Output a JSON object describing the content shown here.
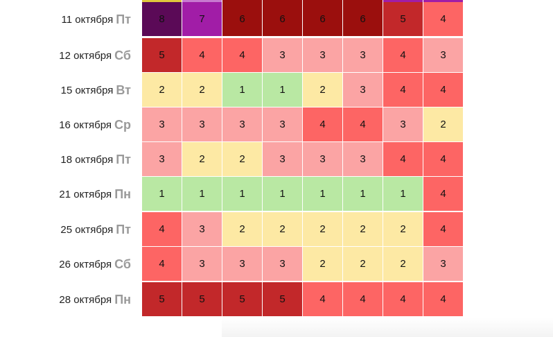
{
  "rows": [
    {
      "date": "11 октября",
      "dow": "Пт",
      "values": [
        8,
        7,
        6,
        6,
        6,
        6,
        5,
        4
      ]
    },
    {
      "date": "12 октября",
      "dow": "Сб",
      "values": [
        5,
        4,
        4,
        3,
        3,
        3,
        4,
        3
      ]
    },
    {
      "date": "15 октября",
      "dow": "Вт",
      "values": [
        2,
        2,
        1,
        1,
        2,
        3,
        4,
        4
      ]
    },
    {
      "date": "16 октября",
      "dow": "Ср",
      "values": [
        3,
        3,
        3,
        3,
        4,
        4,
        3,
        2
      ]
    },
    {
      "date": "18 октября",
      "dow": "Пт",
      "values": [
        3,
        2,
        2,
        3,
        3,
        3,
        4,
        4
      ]
    },
    {
      "date": "21 октября",
      "dow": "Пн",
      "values": [
        1,
        1,
        1,
        1,
        1,
        1,
        1,
        4
      ]
    },
    {
      "date": "25 октября",
      "dow": "Пт",
      "values": [
        4,
        3,
        2,
        2,
        2,
        2,
        2,
        4
      ]
    },
    {
      "date": "26 октября",
      "dow": "Сб",
      "values": [
        4,
        3,
        3,
        3,
        2,
        2,
        2,
        3
      ]
    },
    {
      "date": "28 октября",
      "dow": "Пн",
      "values": [
        5,
        5,
        5,
        5,
        4,
        4,
        4,
        4
      ]
    }
  ],
  "level_colors": {
    "1": "#b9e8a3",
    "2": "#fde9a4",
    "3": "#fba4a4",
    "4": "#fd6564",
    "5": "#c2282a",
    "6": "#9b0f0d",
    "7": "#a11da7",
    "8": "#5b0a57"
  },
  "top_strip_colors": [
    "#e0c83c",
    "#c77ad0",
    "#9b0f0d",
    "#9b0f0d",
    "#9b0f0d",
    "#9b0f0d",
    "#a11da7",
    "#a11da7"
  ]
}
